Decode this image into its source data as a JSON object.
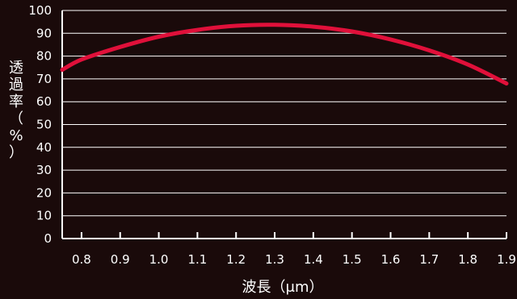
{
  "chart_data": {
    "type": "line",
    "title": "",
    "xlabel": "波長（μm）",
    "ylabel_chars": [
      "透",
      "過",
      "率",
      "（",
      "%",
      "）"
    ],
    "xlim": [
      0.75,
      1.9
    ],
    "ylim": [
      0,
      100
    ],
    "x_ticks": [
      0.8,
      0.9,
      1.0,
      1.1,
      1.2,
      1.3,
      1.4,
      1.5,
      1.6,
      1.7,
      1.8,
      1.9
    ],
    "x_tick_labels": [
      "0.8",
      "0.9",
      "1.0",
      "1.1",
      "1.2",
      "1.3",
      "1.4",
      "1.5",
      "1.6",
      "1.7",
      "1.8",
      "1.9"
    ],
    "y_ticks": [
      0,
      10,
      20,
      30,
      40,
      50,
      60,
      70,
      80,
      90,
      100
    ],
    "y_tick_labels": [
      "0",
      "10",
      "20",
      "30",
      "40",
      "50",
      "60",
      "70",
      "80",
      "90",
      "100"
    ],
    "grid": "horizontal",
    "series": [
      {
        "color": "#e0103a",
        "x": [
          0.75,
          0.8,
          0.9,
          1.0,
          1.1,
          1.2,
          1.3,
          1.4,
          1.5,
          1.6,
          1.7,
          1.8,
          1.9
        ],
        "y": [
          74,
          78.5,
          84,
          88.5,
          91.5,
          93.3,
          93.7,
          92.9,
          90.8,
          87.3,
          82.5,
          76.3,
          68
        ]
      }
    ],
    "colors": {
      "background": "#1a0a0a",
      "axis": "#ffffff",
      "grid": "#ffffff",
      "line": "#e0103a"
    }
  }
}
